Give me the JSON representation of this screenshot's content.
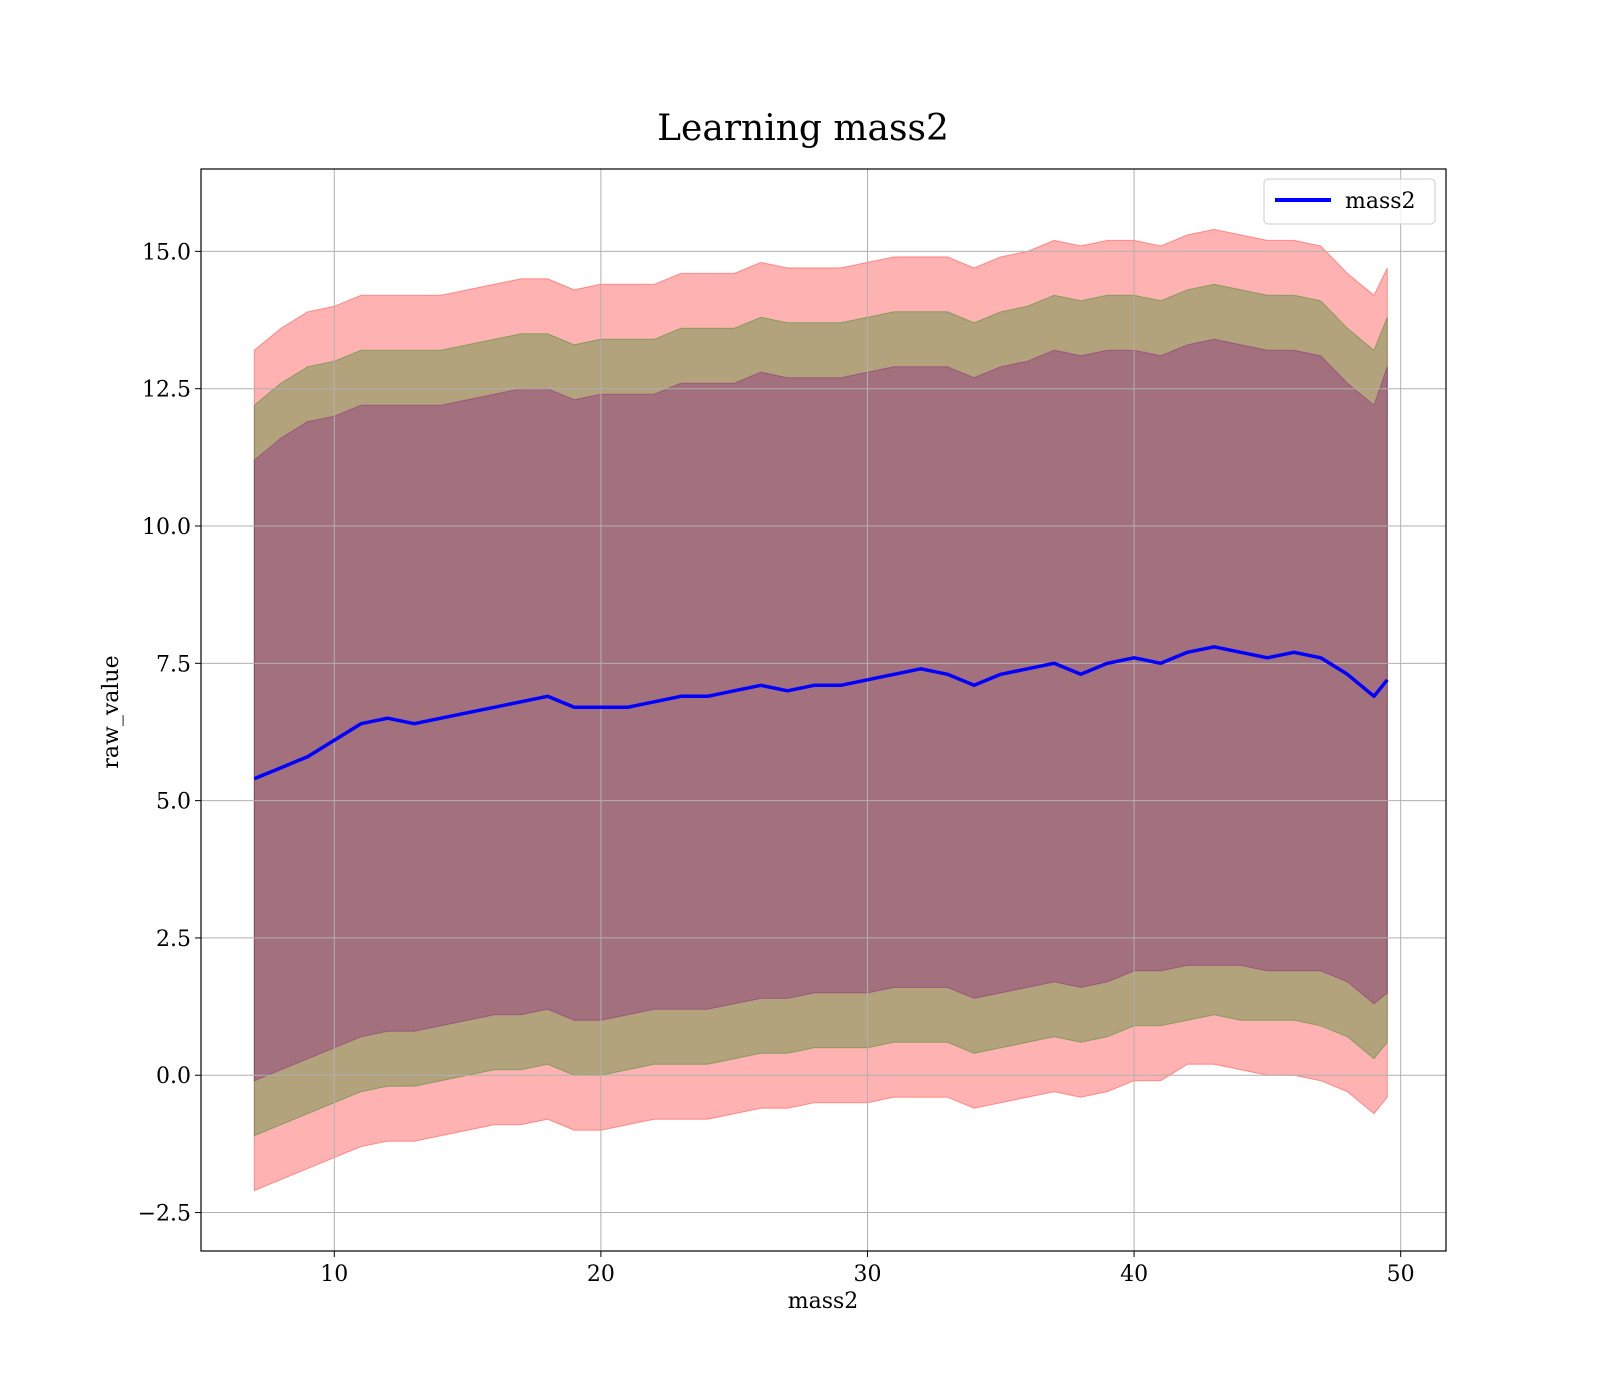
{
  "chart_data": {
    "type": "area",
    "title": "Learning mass2",
    "xlabel": "mass2",
    "ylabel": "raw_value",
    "xlim": [
      5,
      51.7
    ],
    "ylim": [
      -3.2,
      16.5
    ],
    "x_ticks": [
      10,
      20,
      30,
      40,
      50
    ],
    "x_tick_labels": [
      "10",
      "20",
      "30",
      "40",
      "50"
    ],
    "y_ticks": [
      -2.5,
      0.0,
      2.5,
      5.0,
      7.5,
      10.0,
      12.5,
      15.0
    ],
    "y_tick_labels": [
      "−2.5",
      "0.0",
      "2.5",
      "5.0",
      "7.5",
      "10.0",
      "12.5",
      "15.0"
    ],
    "grid": true,
    "legend_position": "top-right",
    "legend": [
      {
        "label": "mass2",
        "color": "#0000ff"
      }
    ],
    "colors": {
      "line": "#0000ff",
      "band_outer": "#ff0000",
      "band_middle": "#008000",
      "band_inner": "#800080",
      "grid": "#b0b0b0"
    },
    "x": [
      7,
      8,
      9,
      10,
      11,
      12,
      13,
      14,
      15,
      16,
      17,
      18,
      19,
      20,
      21,
      22,
      23,
      24,
      25,
      26,
      27,
      28,
      29,
      30,
      31,
      32,
      33,
      34,
      35,
      36,
      37,
      38,
      39,
      40,
      41,
      42,
      43,
      44,
      45,
      46,
      47,
      48,
      49,
      49.5
    ],
    "series": [
      {
        "name": "mass2",
        "values": [
          5.4,
          5.6,
          5.8,
          6.1,
          6.4,
          6.5,
          6.4,
          6.5,
          6.6,
          6.7,
          6.8,
          6.9,
          6.7,
          6.7,
          6.7,
          6.8,
          6.9,
          6.9,
          7.0,
          7.1,
          7.0,
          7.1,
          7.1,
          7.2,
          7.3,
          7.4,
          7.3,
          7.1,
          7.3,
          7.4,
          7.5,
          7.3,
          7.5,
          7.6,
          7.5,
          7.7,
          7.8,
          7.7,
          7.6,
          7.7,
          7.6,
          7.3,
          6.9,
          7.2
        ]
      }
    ],
    "bands": [
      {
        "level": "outer",
        "upper": [
          13.2,
          13.6,
          13.9,
          14.0,
          14.2,
          14.2,
          14.2,
          14.2,
          14.3,
          14.4,
          14.5,
          14.5,
          14.3,
          14.4,
          14.4,
          14.4,
          14.6,
          14.6,
          14.6,
          14.8,
          14.7,
          14.7,
          14.7,
          14.8,
          14.9,
          14.9,
          14.9,
          14.7,
          14.9,
          15.0,
          15.2,
          15.1,
          15.2,
          15.2,
          15.1,
          15.3,
          15.4,
          15.3,
          15.2,
          15.2,
          15.1,
          14.6,
          14.2,
          14.7
        ],
        "lower": [
          -2.1,
          -1.9,
          -1.7,
          -1.5,
          -1.3,
          -1.2,
          -1.2,
          -1.1,
          -1.0,
          -0.9,
          -0.9,
          -0.8,
          -1.0,
          -1.0,
          -0.9,
          -0.8,
          -0.8,
          -0.8,
          -0.7,
          -0.6,
          -0.6,
          -0.5,
          -0.5,
          -0.5,
          -0.4,
          -0.4,
          -0.4,
          -0.6,
          -0.5,
          -0.4,
          -0.3,
          -0.4,
          -0.3,
          -0.1,
          -0.1,
          0.2,
          0.2,
          0.1,
          0.0,
          0.0,
          -0.1,
          -0.3,
          -0.7,
          -0.4
        ]
      },
      {
        "level": "middle",
        "upper": [
          12.2,
          12.6,
          12.9,
          13.0,
          13.2,
          13.2,
          13.2,
          13.2,
          13.3,
          13.4,
          13.5,
          13.5,
          13.3,
          13.4,
          13.4,
          13.4,
          13.6,
          13.6,
          13.6,
          13.8,
          13.7,
          13.7,
          13.7,
          13.8,
          13.9,
          13.9,
          13.9,
          13.7,
          13.9,
          14.0,
          14.2,
          14.1,
          14.2,
          14.2,
          14.1,
          14.3,
          14.4,
          14.3,
          14.2,
          14.2,
          14.1,
          13.6,
          13.2,
          13.8
        ],
        "lower": [
          -1.1,
          -0.9,
          -0.7,
          -0.5,
          -0.3,
          -0.2,
          -0.2,
          -0.1,
          0.0,
          0.1,
          0.1,
          0.2,
          0.0,
          0.0,
          0.1,
          0.2,
          0.2,
          0.2,
          0.3,
          0.4,
          0.4,
          0.5,
          0.5,
          0.5,
          0.6,
          0.6,
          0.6,
          0.4,
          0.5,
          0.6,
          0.7,
          0.6,
          0.7,
          0.9,
          0.9,
          1.0,
          1.1,
          1.0,
          1.0,
          1.0,
          0.9,
          0.7,
          0.3,
          0.6
        ]
      },
      {
        "level": "inner",
        "upper": [
          11.2,
          11.6,
          11.9,
          12.0,
          12.2,
          12.2,
          12.2,
          12.2,
          12.3,
          12.4,
          12.5,
          12.5,
          12.3,
          12.4,
          12.4,
          12.4,
          12.6,
          12.6,
          12.6,
          12.8,
          12.7,
          12.7,
          12.7,
          12.8,
          12.9,
          12.9,
          12.9,
          12.7,
          12.9,
          13.0,
          13.2,
          13.1,
          13.2,
          13.2,
          13.1,
          13.3,
          13.4,
          13.3,
          13.2,
          13.2,
          13.1,
          12.6,
          12.2,
          12.9
        ],
        "lower": [
          -0.1,
          0.1,
          0.3,
          0.5,
          0.7,
          0.8,
          0.8,
          0.9,
          1.0,
          1.1,
          1.1,
          1.2,
          1.0,
          1.0,
          1.1,
          1.2,
          1.2,
          1.2,
          1.3,
          1.4,
          1.4,
          1.5,
          1.5,
          1.5,
          1.6,
          1.6,
          1.6,
          1.4,
          1.5,
          1.6,
          1.7,
          1.6,
          1.7,
          1.9,
          1.9,
          2.0,
          2.0,
          2.0,
          1.9,
          1.9,
          1.9,
          1.7,
          1.3,
          1.5
        ]
      }
    ]
  }
}
